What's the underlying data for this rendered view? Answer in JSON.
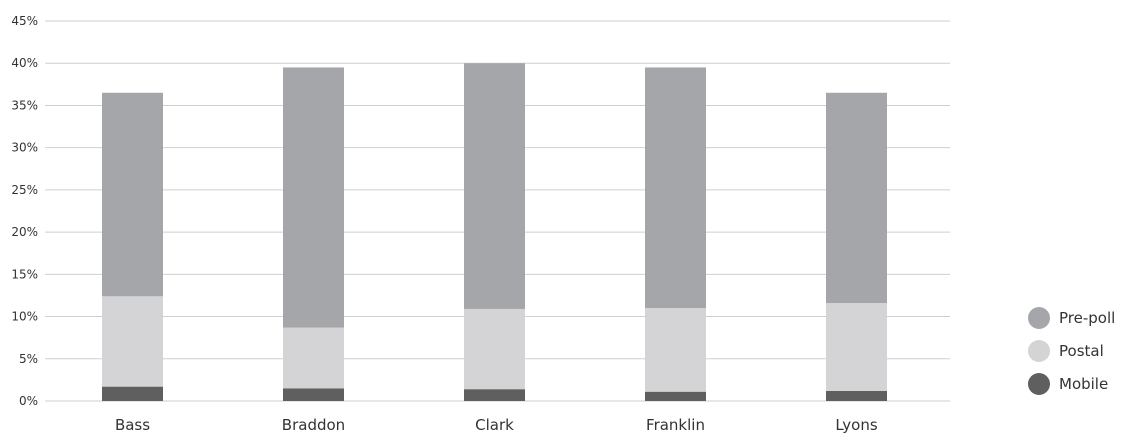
{
  "chart_data": {
    "type": "bar",
    "stacked": true,
    "categories": [
      "Bass",
      "Braddon",
      "Clark",
      "Franklin",
      "Lyons"
    ],
    "series": [
      {
        "name": "Mobile",
        "values": [
          1.7,
          1.5,
          1.4,
          1.1,
          1.2
        ],
        "color": "#5f5f5f"
      },
      {
        "name": "Postal",
        "values": [
          10.7,
          7.2,
          9.5,
          9.9,
          10.4
        ],
        "color": "#d4d4d6"
      },
      {
        "name": "Pre-poll",
        "values": [
          24.1,
          30.8,
          29.1,
          28.5,
          24.9
        ],
        "color": "#a5a6aa"
      }
    ],
    "legend_order": [
      "Pre-poll",
      "Postal",
      "Mobile"
    ],
    "y_ticks": [
      "0%",
      "5%",
      "10%",
      "15%",
      "20%",
      "25%",
      "30%",
      "35%",
      "40%",
      "45%"
    ],
    "ylim": [
      0,
      45
    ],
    "grid": true,
    "legend_position": "right",
    "title": "",
    "xlabel": "",
    "ylabel": ""
  }
}
